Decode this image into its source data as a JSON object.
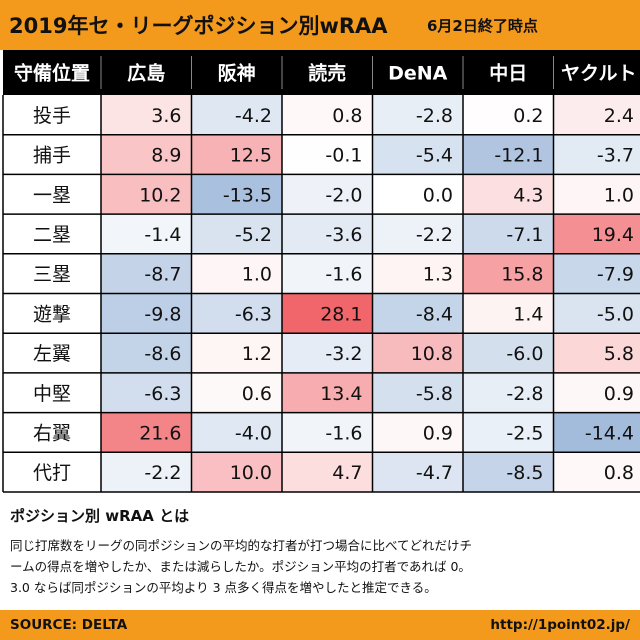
{
  "title": "2019年セ・リーグポジション別wRAA",
  "subtitle": "6月2日終了時点",
  "note": {
    "heading": "ポジション別 wRAA とは",
    "lines": [
      "同じ打席数をリーグの同ポジションの平均的な打者が打つ場合に比べてどれだけチ",
      "ームの得点を増やしたか、または減らしたか。ポジション平均の打者であれば 0。",
      "3.0 ならば同ポジションの平均より 3 点多く得点を増やしたと推定できる。"
    ]
  },
  "source": "SOURCE: DELTA",
  "site_url": "http://1point02.jp/",
  "colors": {
    "accent": "#f39a1d",
    "header_bg": "#000000",
    "header_text": "#ffffff",
    "positive_max": "#f0666b",
    "negative_max": "#a4bcdc",
    "neutral": "#ffffff"
  },
  "chart_data": {
    "type": "heatmap",
    "corner_label": "守備位置",
    "columns": [
      "広島",
      "阪神",
      "読売",
      "DeNA",
      "中日",
      "ヤクルト"
    ],
    "rows": [
      "投手",
      "捕手",
      "一塁",
      "二塁",
      "三塁",
      "遊撃",
      "左翼",
      "中堅",
      "右翼",
      "代打"
    ],
    "values": [
      [
        "3.6",
        "-4.2",
        "0.8",
        "-2.8",
        "0.2",
        "2.4"
      ],
      [
        "8.9",
        "12.5",
        "-0.1",
        "-5.4",
        "-12.1",
        "-3.7"
      ],
      [
        "10.2",
        "-13.5",
        "-2.0",
        "0.0",
        "4.3",
        "1.0"
      ],
      [
        "-1.4",
        "-5.2",
        "-3.6",
        "-2.2",
        "-7.1",
        "19.4"
      ],
      [
        "-8.7",
        "1.0",
        "-1.6",
        "1.3",
        "15.8",
        "-7.9"
      ],
      [
        "-9.8",
        "-6.3",
        "28.1",
        "-8.4",
        "1.4",
        "-5.0"
      ],
      [
        "-8.6",
        "1.2",
        "-3.2",
        "10.8",
        "-6.0",
        "5.8"
      ],
      [
        "-6.3",
        "0.6",
        "13.4",
        "-5.8",
        "-2.8",
        "0.9"
      ],
      [
        "21.6",
        "-4.0",
        "-1.6",
        "0.9",
        "-2.5",
        "-14.4"
      ],
      [
        "-2.2",
        "10.0",
        "4.7",
        "-4.7",
        "-8.5",
        "0.8"
      ]
    ]
  }
}
